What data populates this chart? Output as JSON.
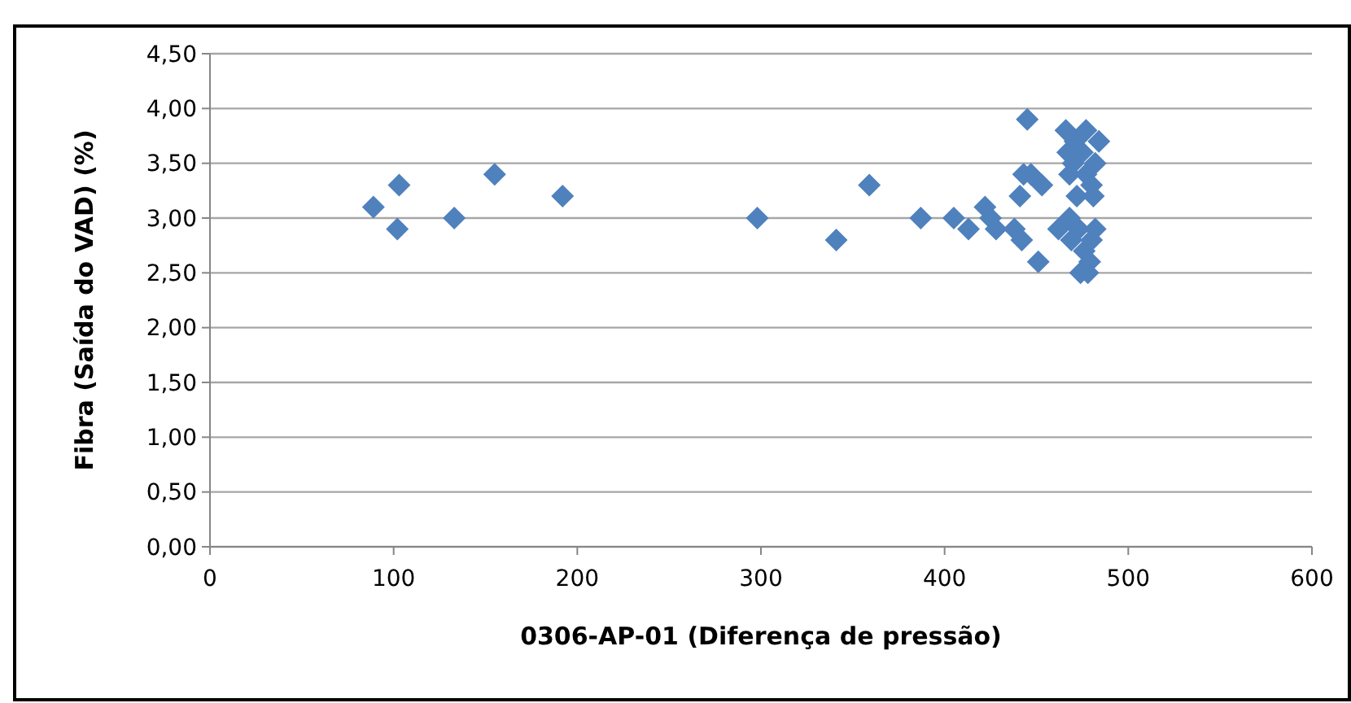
{
  "chart_data": {
    "type": "scatter",
    "xlabel": "0306-AP-01 (Diferença de pressão)",
    "ylabel": "Fibra (Saída do VAD) (%)",
    "xlim": [
      0,
      600
    ],
    "xticks": [
      0,
      100,
      200,
      300,
      400,
      500,
      600
    ],
    "ylim": [
      0,
      4.5
    ],
    "yticks": [
      {
        "value": 0,
        "label": "0,00"
      },
      {
        "value": 0.5,
        "label": "0,50"
      },
      {
        "value": 1,
        "label": "1,00"
      },
      {
        "value": 1.5,
        "label": "1,50"
      },
      {
        "value": 2,
        "label": "2,00"
      },
      {
        "value": 2.5,
        "label": "2,50"
      },
      {
        "value": 3,
        "label": "3,00"
      },
      {
        "value": 3.5,
        "label": "3,50"
      },
      {
        "value": 4,
        "label": "4,00"
      },
      {
        "value": 4.5,
        "label": "4,50"
      }
    ],
    "grid": "y",
    "marker": "diamond",
    "series": [
      {
        "color": "#4f81bd",
        "x": [
          89,
          103,
          102,
          133,
          155,
          192,
          298,
          341,
          359,
          387,
          405,
          413,
          422,
          425,
          428,
          438,
          441,
          442,
          443,
          445,
          447,
          451,
          453,
          462,
          466,
          467,
          468,
          468,
          469,
          470,
          471,
          472,
          473,
          474,
          475,
          476,
          477,
          477,
          478,
          479,
          480,
          480,
          481,
          482,
          484,
          482
        ],
        "values": [
          3.1,
          3.3,
          2.9,
          3.0,
          3.4,
          3.2,
          3.0,
          2.8,
          3.3,
          3.0,
          3.0,
          2.9,
          3.1,
          3.0,
          2.9,
          2.9,
          3.2,
          2.8,
          3.4,
          3.9,
          3.4,
          2.6,
          3.3,
          2.9,
          3.8,
          3.6,
          3.4,
          3.0,
          2.8,
          3.5,
          3.7,
          3.2,
          2.9,
          2.5,
          3.6,
          2.7,
          3.8,
          3.4,
          2.5,
          2.6,
          3.3,
          2.8,
          3.2,
          2.9,
          3.7,
          3.5
        ]
      }
    ]
  }
}
